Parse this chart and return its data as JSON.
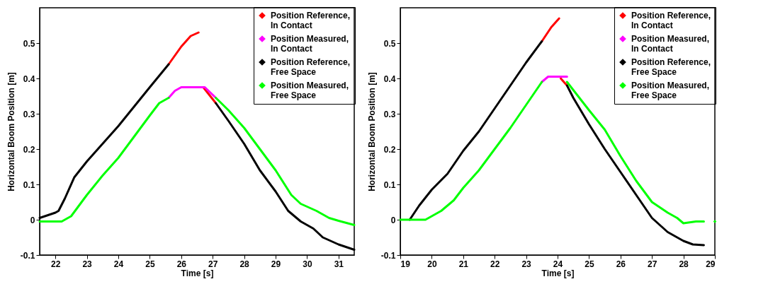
{
  "chart_data": [
    {
      "type": "line",
      "xlabel": "Time [s]",
      "ylabel": "Horizontal Boom Position [m]",
      "xlim": [
        21.5,
        31.5
      ],
      "xticks": [
        22,
        23,
        24,
        25,
        26,
        27,
        28,
        29,
        30,
        31
      ],
      "ylim": [
        -0.1,
        0.6
      ],
      "yticks": [
        -0.1,
        0,
        0.1,
        0.2,
        0.3,
        0.4,
        0.5
      ],
      "legend": "top right",
      "series": [
        {
          "name": "Position Reference,\nIn Contact",
          "color": "#ff0000",
          "x": [
            25.6,
            26,
            26.3,
            26.55,
            26.6,
            26.7,
            27.1
          ],
          "values": [
            0.44,
            0.49,
            0.52,
            0.53,
            null,
            0.375,
            0.33
          ]
        },
        {
          "name": "Position Measured,\nIn Contact",
          "color": "#ff00ff",
          "x": [
            25.6,
            25.8,
            26,
            26.5,
            26.75,
            27.1
          ],
          "values": [
            0.345,
            0.365,
            0.375,
            0.375,
            0.375,
            0.345
          ]
        },
        {
          "name": "Position Reference,\nFree Space",
          "color": "#000000",
          "x": [
            21.5,
            22,
            22.1,
            22.3,
            22.6,
            23,
            23.5,
            24,
            24.5,
            25,
            25.6,
            26.9,
            27.1,
            27.5,
            28,
            28.5,
            29,
            29.4,
            29.8,
            30.2,
            30.5,
            31,
            31.5
          ],
          "values": [
            0.005,
            0.02,
            0.025,
            0.06,
            0.12,
            0.165,
            0.215,
            0.265,
            0.32,
            0.375,
            0.44,
            null,
            0.33,
            0.28,
            0.215,
            0.14,
            0.08,
            0.025,
            -0.005,
            -0.025,
            -0.05,
            -0.07,
            -0.085
          ]
        },
        {
          "name": "Position Measured,\nFree Space",
          "color": "#00ff00",
          "x": [
            21.5,
            22,
            22.2,
            22.5,
            23,
            23.5,
            24,
            24.5,
            25,
            25.3,
            25.6,
            26.5,
            27.1,
            27.5,
            28,
            28.5,
            29,
            29.5,
            29.8,
            30.3,
            30.7,
            31,
            31.5
          ],
          "values": [
            -0.005,
            -0.005,
            -0.005,
            0.01,
            0.07,
            0.125,
            0.175,
            0.235,
            0.295,
            0.33,
            0.345,
            null,
            0.345,
            0.31,
            0.26,
            0.2,
            0.14,
            0.07,
            0.045,
            0.025,
            0.005,
            -0.003,
            -0.015
          ]
        }
      ]
    },
    {
      "type": "line",
      "xlabel": "Time [s]",
      "ylabel": "Horizontal Boom Position [m]",
      "xlim": [
        19,
        29
      ],
      "xticks": [
        19,
        20,
        21,
        22,
        23,
        24,
        25,
        26,
        27,
        28,
        29
      ],
      "ylim": [
        -0.1,
        0.6
      ],
      "yticks": [
        -0.1,
        0,
        0.1,
        0.2,
        0.3,
        0.4,
        0.5
      ],
      "legend": "top right",
      "series": [
        {
          "name": "Position Reference,\nIn Contact",
          "color": "#ff0000",
          "x": [
            23.5,
            23.8,
            24.05,
            24.08,
            24.1,
            24.3
          ],
          "values": [
            0.505,
            0.545,
            0.57,
            null,
            0.4,
            0.38
          ]
        },
        {
          "name": "Position Measured,\nIn Contact",
          "color": "#ff00ff",
          "x": [
            23.5,
            23.7,
            24,
            24.3
          ],
          "values": [
            0.39,
            0.405,
            0.405,
            0.405
          ]
        },
        {
          "name": "Position Reference,\nFree Space",
          "color": "#000000",
          "x": [
            19.3,
            19.6,
            20,
            20.5,
            21,
            21.5,
            22,
            22.5,
            23,
            23.5,
            24,
            24.3,
            24.5,
            25,
            25.5,
            26,
            26.5,
            27,
            27.5,
            28,
            28.3,
            28.65
          ],
          "values": [
            0,
            0.04,
            0.085,
            0.13,
            0.195,
            0.25,
            0.315,
            0.38,
            0.445,
            0.505,
            null,
            0.38,
            0.345,
            0.27,
            0.2,
            0.135,
            0.07,
            0.005,
            -0.035,
            -0.06,
            -0.07,
            -0.072
          ]
        },
        {
          "name": "Position Measured,\nFree Space",
          "color": "#00ff00",
          "x": [
            19,
            19.5,
            19.8,
            20,
            20.3,
            20.7,
            21,
            21.5,
            22,
            22.5,
            23,
            23.5,
            24,
            24.3,
            25,
            25.5,
            26,
            26.5,
            27,
            27.5,
            27.8,
            28,
            28.4,
            28.65,
            28.8,
            29
          ],
          "values": [
            0,
            0,
            0,
            0.01,
            0.025,
            0.055,
            0.09,
            0.14,
            0.2,
            0.26,
            0.325,
            0.39,
            null,
            0.39,
            0.31,
            0.255,
            0.18,
            0.11,
            0.05,
            0.02,
            0.005,
            -0.01,
            -0.005,
            -0.005,
            null,
            -0.005
          ]
        }
      ]
    }
  ]
}
